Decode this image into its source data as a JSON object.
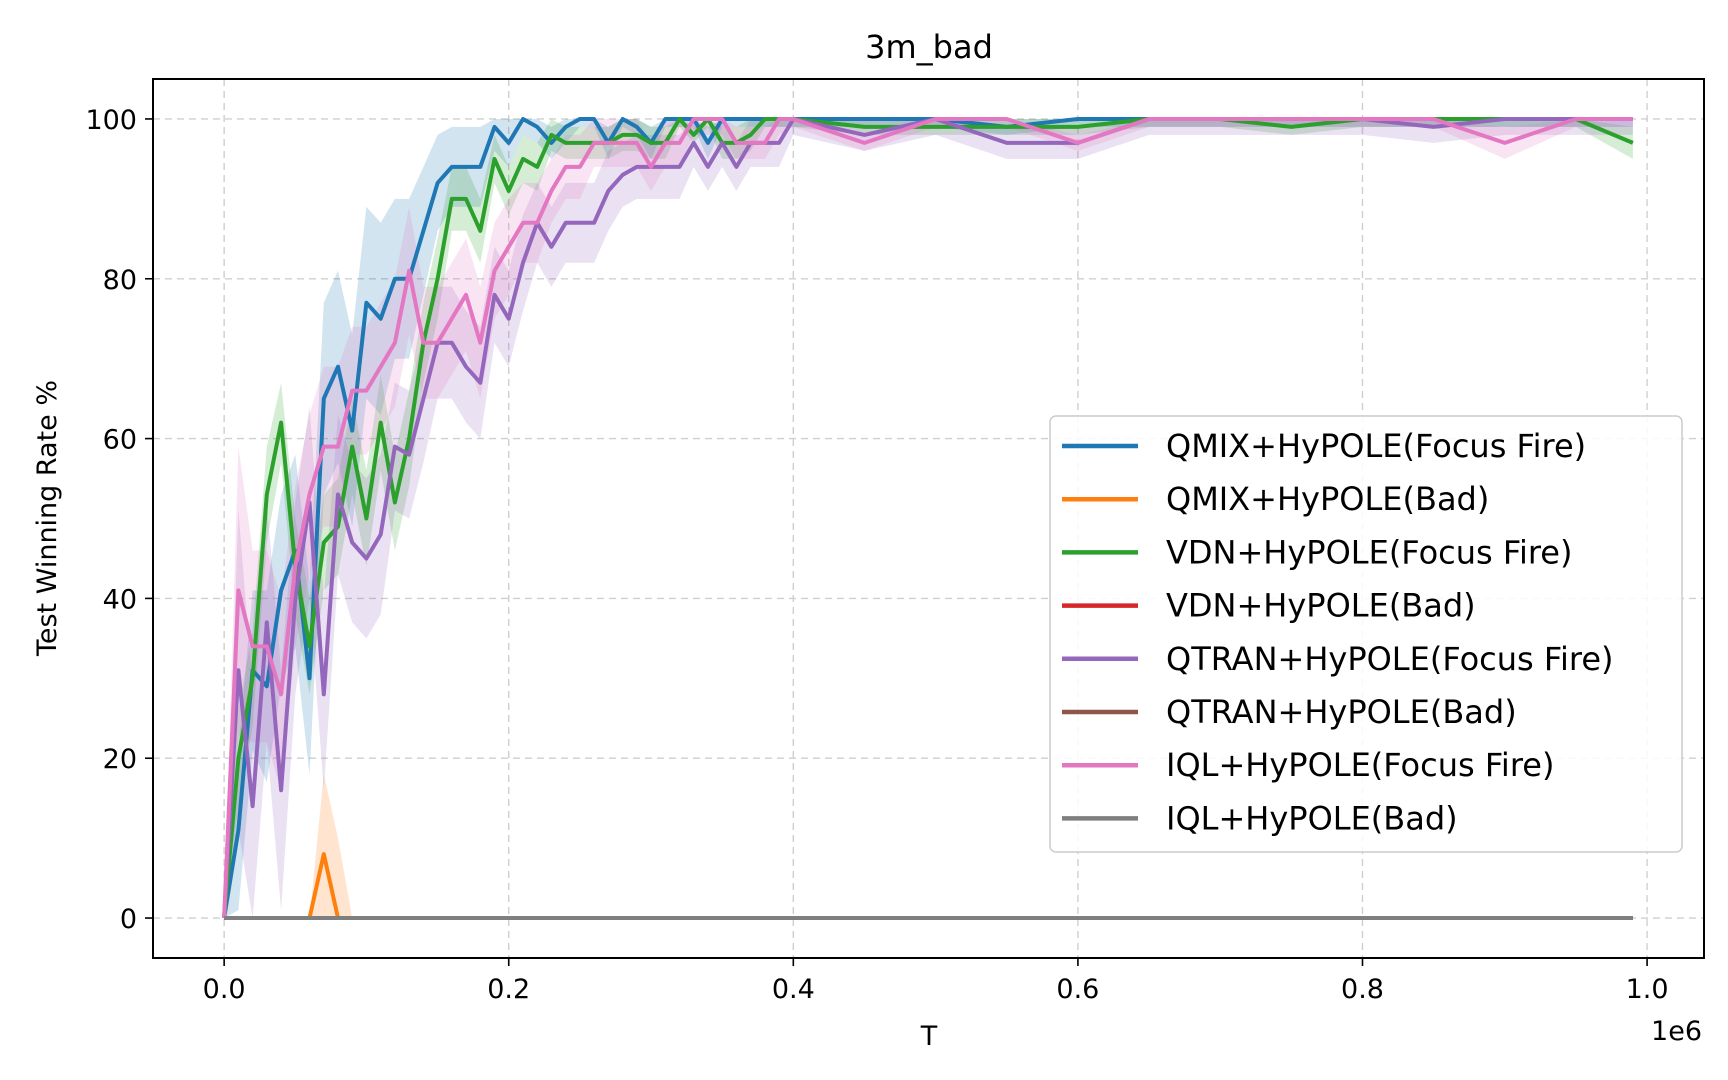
{
  "chart_data": {
    "type": "line",
    "title": "3m_bad",
    "xlabel": "T",
    "ylabel": "Test Winning Rate %",
    "x_offset_label": "1e6",
    "xlim": [
      -0.05,
      1.04
    ],
    "ylim": [
      -5,
      105
    ],
    "x_ticks": [
      0.0,
      0.2,
      0.4,
      0.6,
      0.8,
      1.0
    ],
    "x_tick_labels": [
      "0.0",
      "0.2",
      "0.4",
      "0.6",
      "0.8",
      "1.0"
    ],
    "y_ticks": [
      0,
      20,
      40,
      60,
      80,
      100
    ],
    "y_tick_labels": [
      "0",
      "20",
      "40",
      "60",
      "80",
      "100"
    ],
    "grid": true,
    "legend_position": "center-right",
    "x": [
      0.0,
      0.01,
      0.02,
      0.03,
      0.04,
      0.05,
      0.06,
      0.07,
      0.08,
      0.09,
      0.1,
      0.11,
      0.12,
      0.13,
      0.14,
      0.15,
      0.16,
      0.17,
      0.18,
      0.19,
      0.2,
      0.21,
      0.22,
      0.23,
      0.24,
      0.25,
      0.26,
      0.27,
      0.28,
      0.29,
      0.3,
      0.31,
      0.32,
      0.33,
      0.34,
      0.35,
      0.36,
      0.37,
      0.38,
      0.39,
      0.4,
      0.45,
      0.5,
      0.55,
      0.6,
      0.65,
      0.7,
      0.75,
      0.8,
      0.85,
      0.9,
      0.95,
      0.99
    ],
    "series": [
      {
        "name": "QMIX+HyPOLE(Focus Fire)",
        "color": "#1f77b4",
        "values": [
          0,
          11,
          31,
          29,
          41,
          46,
          30,
          65,
          69,
          61,
          77,
          75,
          80,
          80,
          86,
          92,
          94,
          94,
          94,
          99,
          97,
          100,
          99,
          97,
          99,
          100,
          100,
          97,
          100,
          99,
          97,
          100,
          100,
          100,
          97,
          100,
          100,
          100,
          100,
          100,
          100,
          100,
          100,
          99,
          100,
          100,
          100,
          100,
          100,
          100,
          100,
          100,
          100
        ],
        "band": [
          0,
          10,
          10,
          12,
          12,
          12,
          12,
          12,
          12,
          12,
          12,
          12,
          10,
          10,
          8,
          6,
          5,
          5,
          5,
          3,
          3,
          2,
          2,
          2,
          2,
          1,
          1,
          2,
          1,
          1,
          2,
          1,
          1,
          1,
          2,
          1,
          1,
          1,
          1,
          1,
          1,
          1,
          1,
          1,
          1,
          1,
          1,
          1,
          1,
          1,
          1,
          1,
          1
        ]
      },
      {
        "name": "QMIX+HyPOLE(Bad)",
        "color": "#ff7f0e",
        "values": [
          0,
          0,
          0,
          0,
          0,
          0,
          0,
          8,
          0,
          0,
          0,
          0,
          0,
          0,
          0,
          0,
          0,
          0,
          0,
          0,
          0,
          0,
          0,
          0,
          0,
          0,
          0,
          0,
          0,
          0,
          0,
          0,
          0,
          0,
          0,
          0,
          0,
          0,
          0,
          0,
          0,
          0,
          0,
          0,
          0,
          0,
          0,
          0,
          0,
          0,
          0,
          0,
          0
        ],
        "band": [
          0,
          0,
          0,
          0,
          0,
          0,
          0,
          10,
          10,
          0,
          0,
          0,
          0,
          0,
          0,
          0,
          0,
          0,
          0,
          0,
          0,
          0,
          0,
          0,
          0,
          0,
          0,
          0,
          0,
          0,
          0,
          0,
          0,
          0,
          0,
          0,
          0,
          0,
          0,
          0,
          0,
          0,
          0,
          0,
          0,
          0,
          0,
          0,
          0,
          0,
          0,
          0,
          0
        ]
      },
      {
        "name": "VDN+HyPOLE(Focus Fire)",
        "color": "#2ca02c",
        "values": [
          0,
          20,
          30,
          53,
          62,
          44,
          34,
          47,
          49,
          59,
          50,
          62,
          52,
          60,
          72,
          80,
          90,
          90,
          86,
          95,
          91,
          95,
          94,
          98,
          97,
          97,
          97,
          97,
          98,
          98,
          97,
          97,
          100,
          98,
          100,
          97,
          97,
          98,
          100,
          100,
          100,
          99,
          99,
          99,
          99,
          100,
          100,
          99,
          100,
          100,
          100,
          100,
          97
        ],
        "band": [
          0,
          6,
          6,
          6,
          5,
          6,
          6,
          6,
          6,
          6,
          6,
          6,
          6,
          6,
          5,
          5,
          4,
          4,
          4,
          3,
          3,
          3,
          3,
          2,
          2,
          2,
          2,
          2,
          2,
          2,
          2,
          2,
          1,
          1,
          1,
          2,
          2,
          2,
          1,
          1,
          1,
          1,
          1,
          1,
          1,
          1,
          1,
          1,
          1,
          1,
          1,
          1,
          2
        ]
      },
      {
        "name": "VDN+HyPOLE(Bad)",
        "color": "#d62728",
        "values": [
          0,
          0,
          0,
          0,
          0,
          0,
          0,
          0,
          0,
          0,
          0,
          0,
          0,
          0,
          0,
          0,
          0,
          0,
          0,
          0,
          0,
          0,
          0,
          0,
          0,
          0,
          0,
          0,
          0,
          0,
          0,
          0,
          0,
          0,
          0,
          0,
          0,
          0,
          0,
          0,
          0,
          0,
          0,
          0,
          0,
          0,
          0,
          0,
          0,
          0,
          0,
          0,
          0
        ],
        "band": [
          0,
          0,
          0,
          0,
          0,
          0,
          0,
          0,
          0,
          0,
          0,
          0,
          0,
          0,
          0,
          0,
          0,
          0,
          0,
          0,
          0,
          0,
          0,
          0,
          0,
          0,
          0,
          0,
          0,
          0,
          0,
          0,
          0,
          0,
          0,
          0,
          0,
          0,
          0,
          0,
          0,
          0,
          0,
          0,
          0,
          0,
          0,
          0,
          0,
          0,
          0,
          0,
          0
        ]
      },
      {
        "name": "QTRAN+HyPOLE(Focus Fire)",
        "color": "#9467bd",
        "values": [
          0,
          31,
          14,
          37,
          16,
          40,
          52,
          28,
          53,
          47,
          45,
          48,
          59,
          58,
          65,
          72,
          72,
          69,
          67,
          78,
          75,
          82,
          87,
          84,
          87,
          87,
          87,
          91,
          93,
          94,
          94,
          94,
          94,
          97,
          94,
          97,
          94,
          97,
          97,
          97,
          100,
          98,
          100,
          97,
          97,
          100,
          100,
          100,
          100,
          99,
          100,
          100,
          100
        ],
        "band": [
          0,
          20,
          15,
          15,
          15,
          12,
          12,
          12,
          10,
          10,
          10,
          10,
          8,
          8,
          8,
          7,
          7,
          7,
          7,
          6,
          6,
          6,
          5,
          5,
          5,
          5,
          5,
          5,
          4,
          4,
          4,
          4,
          4,
          3,
          3,
          3,
          3,
          3,
          3,
          3,
          2,
          2,
          2,
          2,
          2,
          2,
          2,
          2,
          2,
          2,
          2,
          2,
          2
        ]
      },
      {
        "name": "QTRAN+HyPOLE(Bad)",
        "color": "#8c564b",
        "values": [
          0,
          0,
          0,
          0,
          0,
          0,
          0,
          0,
          0,
          0,
          0,
          0,
          0,
          0,
          0,
          0,
          0,
          0,
          0,
          0,
          0,
          0,
          0,
          0,
          0,
          0,
          0,
          0,
          0,
          0,
          0,
          0,
          0,
          0,
          0,
          0,
          0,
          0,
          0,
          0,
          0,
          0,
          0,
          0,
          0,
          0,
          0,
          0,
          0,
          0,
          0,
          0,
          0
        ],
        "band": [
          0,
          0,
          0,
          0,
          0,
          0,
          0,
          0,
          0,
          0,
          0,
          0,
          0,
          0,
          0,
          0,
          0,
          0,
          0,
          0,
          0,
          0,
          0,
          0,
          0,
          0,
          0,
          0,
          0,
          0,
          0,
          0,
          0,
          0,
          0,
          0,
          0,
          0,
          0,
          0,
          0,
          0,
          0,
          0,
          0,
          0,
          0,
          0,
          0,
          0,
          0,
          0,
          0
        ]
      },
      {
        "name": "IQL+HyPOLE(Focus Fire)",
        "color": "#e377c2",
        "values": [
          0,
          41,
          34,
          34,
          28,
          44,
          53,
          59,
          59,
          66,
          66,
          69,
          72,
          81,
          72,
          72,
          75,
          78,
          72,
          81,
          84,
          87,
          87,
          91,
          94,
          94,
          97,
          97,
          97,
          97,
          94,
          97,
          97,
          100,
          100,
          100,
          97,
          97,
          97,
          100,
          100,
          97,
          100,
          100,
          97,
          100,
          100,
          100,
          100,
          100,
          97,
          100,
          100
        ],
        "band": [
          0,
          18,
          12,
          12,
          12,
          10,
          10,
          10,
          10,
          8,
          8,
          8,
          8,
          8,
          7,
          7,
          7,
          7,
          7,
          6,
          6,
          5,
          5,
          4,
          4,
          4,
          3,
          3,
          3,
          3,
          3,
          3,
          3,
          2,
          2,
          2,
          2,
          2,
          2,
          2,
          1,
          1,
          1,
          1,
          1,
          1,
          1,
          1,
          1,
          1,
          2,
          1,
          1
        ]
      },
      {
        "name": "IQL+HyPOLE(Bad)",
        "color": "#7f7f7f",
        "values": [
          0,
          0,
          0,
          0,
          0,
          0,
          0,
          0,
          0,
          0,
          0,
          0,
          0,
          0,
          0,
          0,
          0,
          0,
          0,
          0,
          0,
          0,
          0,
          0,
          0,
          0,
          0,
          0,
          0,
          0,
          0,
          0,
          0,
          0,
          0,
          0,
          0,
          0,
          0,
          0,
          0,
          0,
          0,
          0,
          0,
          0,
          0,
          0,
          0,
          0,
          0,
          0,
          0
        ],
        "band": [
          0,
          0,
          0,
          0,
          0,
          0,
          0,
          0,
          0,
          0,
          0,
          0,
          0,
          0,
          0,
          0,
          0,
          0,
          0,
          0,
          0,
          0,
          0,
          0,
          0,
          0,
          0,
          0,
          0,
          0,
          0,
          0,
          0,
          0,
          0,
          0,
          0,
          0,
          0,
          0,
          0,
          0,
          0,
          0,
          0,
          0,
          0,
          0,
          0,
          0,
          0,
          0,
          0
        ]
      }
    ]
  }
}
